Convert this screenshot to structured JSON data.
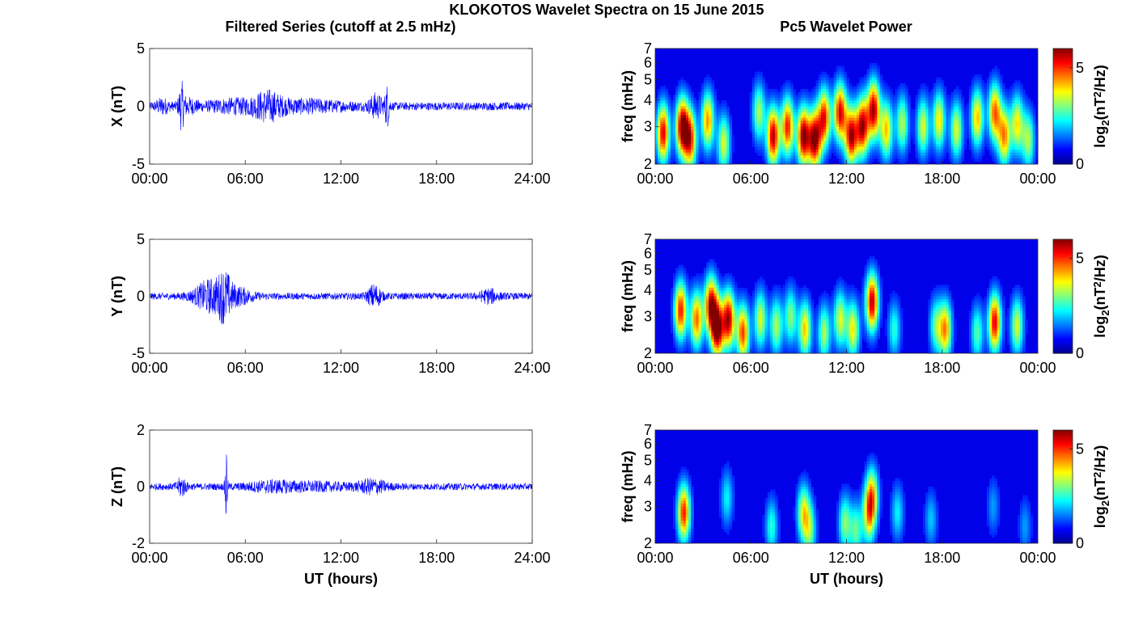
{
  "figure": {
    "title": "KLOKOTOS Wavelet Spectra on 15 June 2015",
    "left_title": "Filtered Series (cutoff at 2.5 mHz)",
    "right_title": "Pc5 Wavelet Power"
  },
  "chart_data": [
    {
      "type": "line",
      "ylabel": "X (nT)",
      "xlabel": "",
      "xlim": [
        0,
        24
      ],
      "ylim": [
        -5,
        5
      ],
      "yticks": [
        "5",
        "0",
        "-5"
      ],
      "xticks": [
        "00:00",
        "06:00",
        "12:00",
        "18:00",
        "24:00"
      ],
      "color": "#0000ff",
      "envelope": {
        "base_amplitude": 0.35,
        "bursts": [
          [
            0.8,
            0.3,
            0.5
          ],
          [
            2.0,
            0.12,
            1.6
          ],
          [
            2.4,
            0.4,
            0.5
          ],
          [
            5.2,
            1.2,
            0.4
          ],
          [
            7.4,
            0.6,
            0.9
          ],
          [
            9.5,
            2.0,
            0.4
          ],
          [
            14.2,
            0.3,
            0.9
          ],
          [
            14.9,
            0.1,
            1.6
          ]
        ]
      }
    },
    {
      "type": "line",
      "ylabel": "Y (nT)",
      "xlabel": "",
      "xlim": [
        0,
        24
      ],
      "ylim": [
        -5,
        5
      ],
      "yticks": [
        "5",
        "0",
        "-5"
      ],
      "xticks": [
        "00:00",
        "06:00",
        "12:00",
        "18:00",
        "24:00"
      ],
      "color": "#0000ff",
      "envelope": {
        "base_amplitude": 0.3,
        "bursts": [
          [
            3.8,
            0.7,
            1.3
          ],
          [
            4.7,
            0.3,
            1.5
          ],
          [
            5.6,
            0.6,
            0.6
          ],
          [
            14.1,
            0.3,
            0.9
          ],
          [
            21.3,
            0.4,
            0.5
          ]
        ]
      }
    },
    {
      "type": "line",
      "ylabel": "Z (nT)",
      "xlabel": "UT (hours)",
      "xlim": [
        0,
        24
      ],
      "ylim": [
        -2,
        2
      ],
      "yticks": [
        "2",
        "0",
        "-2"
      ],
      "xticks": [
        "00:00",
        "06:00",
        "12:00",
        "18:00",
        "24:00"
      ],
      "color": "#0000ff",
      "envelope": {
        "base_amplitude": 0.12,
        "bursts": [
          [
            2.0,
            0.2,
            0.3
          ],
          [
            4.8,
            0.05,
            1.7
          ],
          [
            7.5,
            1.0,
            0.1
          ],
          [
            10.0,
            2.0,
            0.1
          ],
          [
            14.0,
            0.6,
            0.2
          ]
        ]
      }
    },
    {
      "type": "heatmap",
      "ylabel": "freq (mHz)",
      "xlabel": "",
      "xlim": [
        0,
        24
      ],
      "ylim": [
        2,
        7
      ],
      "yscale": "log",
      "yticks": [
        "7",
        "6",
        "5",
        "4",
        "3",
        "2"
      ],
      "xticks": [
        "00:00",
        "06:00",
        "12:00",
        "18:00",
        "00:00"
      ],
      "colorbar": {
        "label": "log2(nT2/Hz)",
        "ticks": [
          "5",
          "0"
        ],
        "range": [
          0,
          6
        ]
      },
      "colormap": [
        "#00008f",
        "#0000ff",
        "#00ffff",
        "#ffff00",
        "#ff0000",
        "#800000"
      ],
      "blobs": [
        [
          0.5,
          2.8,
          0.9
        ],
        [
          1.7,
          3.0,
          1.0
        ],
        [
          2.2,
          2.6,
          0.8
        ],
        [
          3.3,
          3.2,
          0.7
        ],
        [
          4.3,
          2.5,
          0.55
        ],
        [
          6.5,
          3.5,
          0.5
        ],
        [
          7.4,
          2.7,
          0.95
        ],
        [
          8.3,
          3.0,
          0.85
        ],
        [
          9.3,
          2.7,
          1.0
        ],
        [
          10.0,
          2.6,
          1.0
        ],
        [
          10.6,
          3.3,
          0.85
        ],
        [
          11.6,
          3.5,
          0.9
        ],
        [
          12.3,
          2.7,
          0.95
        ],
        [
          13.0,
          3.0,
          0.95
        ],
        [
          13.7,
          3.6,
          0.95
        ],
        [
          14.5,
          2.9,
          0.65
        ],
        [
          15.5,
          3.1,
          0.5
        ],
        [
          16.8,
          3.0,
          0.55
        ],
        [
          17.8,
          3.2,
          0.6
        ],
        [
          18.9,
          2.9,
          0.55
        ],
        [
          20.2,
          3.3,
          0.65
        ],
        [
          21.3,
          3.5,
          0.75
        ],
        [
          21.9,
          2.7,
          0.7
        ],
        [
          22.7,
          3.1,
          0.6
        ],
        [
          23.4,
          2.6,
          0.5
        ]
      ]
    },
    {
      "type": "heatmap",
      "ylabel": "freq (mHz)",
      "xlabel": "",
      "xlim": [
        0,
        24
      ],
      "ylim": [
        2,
        7
      ],
      "yscale": "log",
      "yticks": [
        "7",
        "6",
        "5",
        "4",
        "3",
        "2"
      ],
      "xticks": [
        "00:00",
        "06:00",
        "12:00",
        "18:00",
        "00:00"
      ],
      "colorbar": {
        "label": "log2(nT2/Hz)",
        "ticks": [
          "5",
          "0"
        ],
        "range": [
          0,
          6
        ]
      },
      "colormap": [
        "#00008f",
        "#0000ff",
        "#00ffff",
        "#ffff00",
        "#ff0000",
        "#800000"
      ],
      "blobs": [
        [
          1.6,
          3.2,
          0.85
        ],
        [
          2.6,
          2.9,
          0.75
        ],
        [
          3.5,
          3.4,
          0.9
        ],
        [
          3.9,
          2.6,
          1.0
        ],
        [
          4.6,
          2.9,
          0.95
        ],
        [
          5.5,
          2.5,
          0.8
        ],
        [
          6.6,
          2.9,
          0.55
        ],
        [
          7.6,
          2.7,
          0.5
        ],
        [
          8.5,
          3.0,
          0.45
        ],
        [
          9.4,
          2.6,
          0.65
        ],
        [
          10.6,
          2.5,
          0.5
        ],
        [
          11.6,
          2.9,
          0.55
        ],
        [
          12.4,
          2.6,
          0.6
        ],
        [
          13.6,
          3.5,
          0.95
        ],
        [
          15.0,
          2.6,
          0.35
        ],
        [
          17.6,
          2.7,
          0.4
        ],
        [
          18.2,
          2.6,
          0.7
        ],
        [
          20.2,
          2.5,
          0.4
        ],
        [
          21.3,
          2.8,
          0.9
        ],
        [
          22.7,
          2.7,
          0.55
        ]
      ]
    },
    {
      "type": "heatmap",
      "ylabel": "freq (mHz)",
      "xlabel": "UT (hours)",
      "xlim": [
        0,
        24
      ],
      "ylim": [
        2,
        7
      ],
      "yscale": "log",
      "yticks": [
        "7",
        "6",
        "5",
        "4",
        "3",
        "2"
      ],
      "xticks": [
        "00:00",
        "06:00",
        "12:00",
        "18:00",
        "00:00"
      ],
      "colorbar": {
        "label": "log2(nT2/Hz)",
        "ticks": [
          "5",
          "0"
        ],
        "range": [
          0,
          6
        ]
      },
      "colormap": [
        "#00008f",
        "#0000ff",
        "#00ffff",
        "#ffff00",
        "#ff0000",
        "#800000"
      ],
      "blobs": [
        [
          1.8,
          2.8,
          0.85
        ],
        [
          4.5,
          3.3,
          0.3
        ],
        [
          7.3,
          2.4,
          0.35
        ],
        [
          9.3,
          2.8,
          0.55
        ],
        [
          9.7,
          2.3,
          0.4
        ],
        [
          11.9,
          2.5,
          0.45
        ],
        [
          12.6,
          2.3,
          0.4
        ],
        [
          13.4,
          2.7,
          0.55
        ],
        [
          13.6,
          3.4,
          0.6
        ],
        [
          15.2,
          2.8,
          0.3
        ],
        [
          17.3,
          2.6,
          0.25
        ],
        [
          21.2,
          3.0,
          0.2
        ],
        [
          23.2,
          2.4,
          0.2
        ]
      ]
    }
  ]
}
